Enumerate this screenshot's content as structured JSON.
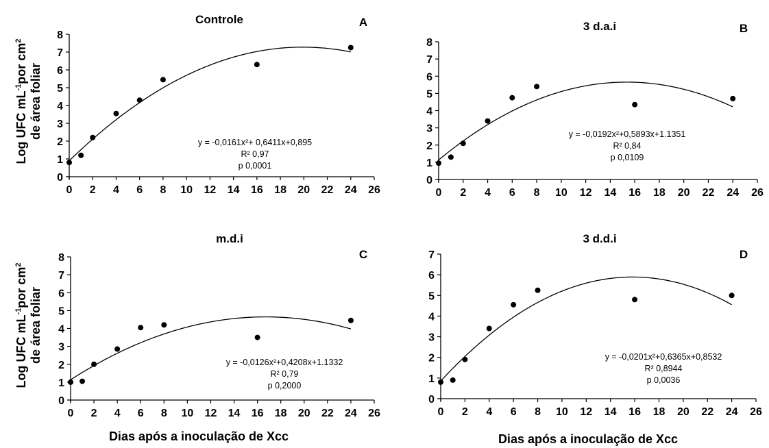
{
  "ylabel_line1": "Log UFC mL",
  "ylabel_sup1": "-1",
  "ylabel_line1b": "por cm",
  "ylabel_sup2": "2",
  "ylabel_line2": "de área  foliar",
  "chart_data": [
    {
      "type": "scatter",
      "title": "Controle",
      "panel_letter": "A",
      "xlabel": "",
      "x_ticks": [
        0,
        2,
        4,
        6,
        8,
        10,
        12,
        14,
        16,
        18,
        20,
        22,
        24,
        26
      ],
      "y_ticks": [
        0,
        1,
        2,
        3,
        4,
        5,
        6,
        7,
        8
      ],
      "xlim": [
        0,
        26
      ],
      "ylim": [
        0,
        8
      ],
      "points": [
        [
          0,
          0.8
        ],
        [
          1,
          1.2
        ],
        [
          2,
          2.2
        ],
        [
          4,
          3.55
        ],
        [
          6,
          4.3
        ],
        [
          8,
          5.45
        ],
        [
          16,
          6.3
        ],
        [
          24,
          7.25
        ]
      ],
      "fit": {
        "a": -0.0161,
        "b": 0.6411,
        "c": 0.895
      },
      "equation_lines": [
        "y = -0,0161x²+ 0,6411x+0,895",
        "R²  0,97",
        "p 0,0001"
      ]
    },
    {
      "type": "scatter",
      "title": "3 d.a.i",
      "panel_letter": "B",
      "xlabel": "",
      "x_ticks": [
        0,
        2,
        4,
        6,
        8,
        10,
        12,
        14,
        16,
        18,
        20,
        22,
        24,
        26
      ],
      "y_ticks": [
        0,
        1,
        2,
        3,
        4,
        5,
        6,
        7,
        8
      ],
      "xlim": [
        0,
        26
      ],
      "ylim": [
        0,
        8
      ],
      "points": [
        [
          0,
          0.95
        ],
        [
          1,
          1.3
        ],
        [
          2,
          2.1
        ],
        [
          4,
          3.4
        ],
        [
          6,
          4.75
        ],
        [
          8,
          5.4
        ],
        [
          16,
          4.35
        ],
        [
          24,
          4.7
        ]
      ],
      "fit": {
        "a": -0.0192,
        "b": 0.5893,
        "c": 1.1351
      },
      "equation_lines": [
        "y = -0,0192x²+0,5893x+1.1351",
        "R² 0,84",
        "p 0,0109"
      ]
    },
    {
      "type": "scatter",
      "title": "m.d.i",
      "panel_letter": "C",
      "xlabel": "Dias após a inoculação de Xcc",
      "x_ticks": [
        0,
        2,
        4,
        6,
        8,
        10,
        12,
        14,
        16,
        18,
        20,
        22,
        24,
        26
      ],
      "y_ticks": [
        0,
        1,
        2,
        3,
        4,
        5,
        6,
        7,
        8
      ],
      "xlim": [
        0,
        26
      ],
      "ylim": [
        0,
        8
      ],
      "points": [
        [
          0,
          1.0
        ],
        [
          1,
          1.05
        ],
        [
          2,
          2.0
        ],
        [
          4,
          2.85
        ],
        [
          6,
          4.05
        ],
        [
          8,
          4.2
        ],
        [
          16,
          3.5
        ],
        [
          24,
          4.45
        ]
      ],
      "fit": {
        "a": -0.0126,
        "b": 0.4208,
        "c": 1.1332
      },
      "equation_lines": [
        "y = -0,0126x²+0,4208x+1.1332",
        "R²  0,79",
        "p 0,2000"
      ]
    },
    {
      "type": "scatter",
      "title": "3 d.d.i",
      "panel_letter": "D",
      "xlabel": "Dias após a inoculação de Xcc",
      "x_ticks": [
        0,
        2,
        4,
        6,
        8,
        10,
        12,
        14,
        16,
        18,
        20,
        22,
        24,
        26
      ],
      "y_ticks": [
        0,
        1,
        2,
        3,
        4,
        5,
        6,
        7
      ],
      "xlim": [
        0,
        26
      ],
      "ylim": [
        0,
        7
      ],
      "points": [
        [
          0,
          0.8
        ],
        [
          1,
          0.9
        ],
        [
          2,
          1.9
        ],
        [
          4,
          3.4
        ],
        [
          6,
          4.55
        ],
        [
          8,
          5.25
        ],
        [
          16,
          4.8
        ],
        [
          24,
          5.0
        ]
      ],
      "fit": {
        "a": -0.0201,
        "b": 0.6365,
        "c": 0.8532
      },
      "equation_lines": [
        "y = -0,0201x²+0,6365x+0,8532",
        "R² 0,8944",
        "p 0,0036"
      ]
    }
  ]
}
